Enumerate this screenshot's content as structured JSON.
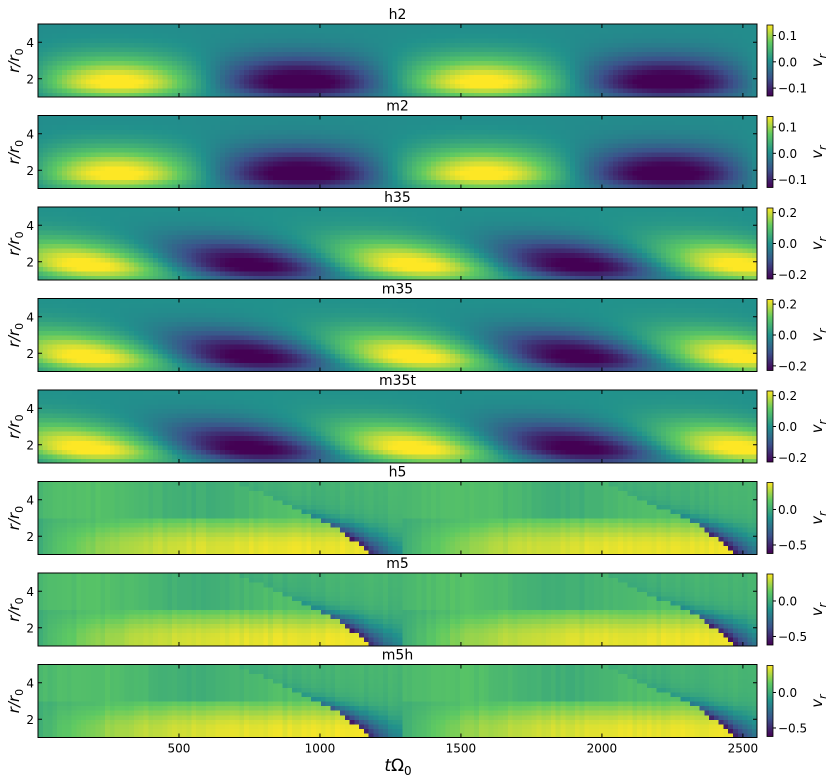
{
  "figure": {
    "xlabel_prefix": "t",
    "xlabel_greek": "Ω",
    "xlabel_sub": "0",
    "xticks": [
      "500",
      "1000",
      "1500",
      "2000",
      "2500"
    ],
    "ylabel_base": "r/r",
    "ylabel_sub": "0",
    "colorbar_label_base": "v",
    "colorbar_label_sub": "r",
    "colormap": [
      "#440154",
      "#3b528b",
      "#21918c",
      "#5ec962",
      "#fde725"
    ]
  },
  "chart_data": [
    {
      "type": "heatmap",
      "title": "h2",
      "xlim": [
        0,
        2550
      ],
      "ylim": [
        1,
        5
      ],
      "yticks": [
        "2",
        "4"
      ],
      "clim": [
        -0.13,
        0.14
      ],
      "cbar_ticks": [
        {
          "v": 0.1,
          "label": "0.1"
        },
        {
          "v": 0.0,
          "label": "0.0"
        },
        {
          "v": -0.1,
          "label": "−0.1"
        }
      ],
      "period": 1300,
      "wave_phase": 290,
      "tilt": 10,
      "style": "smooth"
    },
    {
      "type": "heatmap",
      "title": "m2",
      "xlim": [
        0,
        2550
      ],
      "ylim": [
        1,
        5
      ],
      "yticks": [
        "2",
        "4"
      ],
      "clim": [
        -0.13,
        0.14
      ],
      "cbar_ticks": [
        {
          "v": 0.1,
          "label": "0.1"
        },
        {
          "v": 0.0,
          "label": "0.0"
        },
        {
          "v": -0.1,
          "label": "−0.1"
        }
      ],
      "period": 1300,
      "wave_phase": 290,
      "tilt": 10,
      "style": "smooth"
    },
    {
      "type": "heatmap",
      "title": "h35",
      "xlim": [
        0,
        2550
      ],
      "ylim": [
        1,
        5
      ],
      "yticks": [
        "2",
        "4"
      ],
      "clim": [
        -0.23,
        0.23
      ],
      "cbar_ticks": [
        {
          "v": 0.2,
          "label": "0.2"
        },
        {
          "v": 0.0,
          "label": "0.0"
        },
        {
          "v": -0.2,
          "label": "−0.2"
        }
      ],
      "period": 1160,
      "wave_phase": 250,
      "tilt": 90,
      "style": "smooth"
    },
    {
      "type": "heatmap",
      "title": "m35",
      "xlim": [
        0,
        2550
      ],
      "ylim": [
        1,
        5
      ],
      "yticks": [
        "2",
        "4"
      ],
      "clim": [
        -0.23,
        0.23
      ],
      "cbar_ticks": [
        {
          "v": 0.2,
          "label": "0.2"
        },
        {
          "v": 0.0,
          "label": "0.0"
        },
        {
          "v": -0.2,
          "label": "−0.2"
        }
      ],
      "period": 1160,
      "wave_phase": 250,
      "tilt": 90,
      "style": "smooth"
    },
    {
      "type": "heatmap",
      "title": "m35t",
      "xlim": [
        0,
        2550
      ],
      "ylim": [
        1,
        5
      ],
      "yticks": [
        "2",
        "4"
      ],
      "clim": [
        -0.23,
        0.23
      ],
      "cbar_ticks": [
        {
          "v": 0.2,
          "label": "0.2"
        },
        {
          "v": 0.0,
          "label": "0.0"
        },
        {
          "v": -0.2,
          "label": "−0.2"
        }
      ],
      "period": 1160,
      "wave_phase": 250,
      "tilt": 90,
      "style": "smooth"
    },
    {
      "type": "heatmap",
      "title": "h5",
      "xlim": [
        0,
        2550
      ],
      "ylim": [
        1,
        5
      ],
      "yticks": [
        "2",
        "4"
      ],
      "clim": [
        -0.62,
        0.38
      ],
      "cbar_ticks": [
        {
          "v": 0.0,
          "label": "0.0"
        },
        {
          "v": -0.5,
          "label": "−0.5"
        }
      ],
      "period": 1300,
      "front_start": 20,
      "front_end": 420,
      "style": "shock"
    },
    {
      "type": "heatmap",
      "title": "m5",
      "xlim": [
        0,
        2550
      ],
      "ylim": [
        1,
        5
      ],
      "yticks": [
        "2",
        "4"
      ],
      "clim": [
        -0.62,
        0.38
      ],
      "cbar_ticks": [
        {
          "v": 0.0,
          "label": "0.0"
        },
        {
          "v": -0.5,
          "label": "−0.5"
        }
      ],
      "period": 1300,
      "front_start": 0,
      "front_end": 390,
      "style": "shock"
    },
    {
      "type": "heatmap",
      "title": "m5h",
      "xlim": [
        0,
        2550
      ],
      "ylim": [
        1,
        5
      ],
      "yticks": [
        "2",
        "4"
      ],
      "clim": [
        -0.62,
        0.38
      ],
      "cbar_ticks": [
        {
          "v": 0.0,
          "label": "0.0"
        },
        {
          "v": -0.5,
          "label": "−0.5"
        }
      ],
      "period": 1300,
      "front_start": 30,
      "front_end": 440,
      "style": "shock"
    }
  ]
}
